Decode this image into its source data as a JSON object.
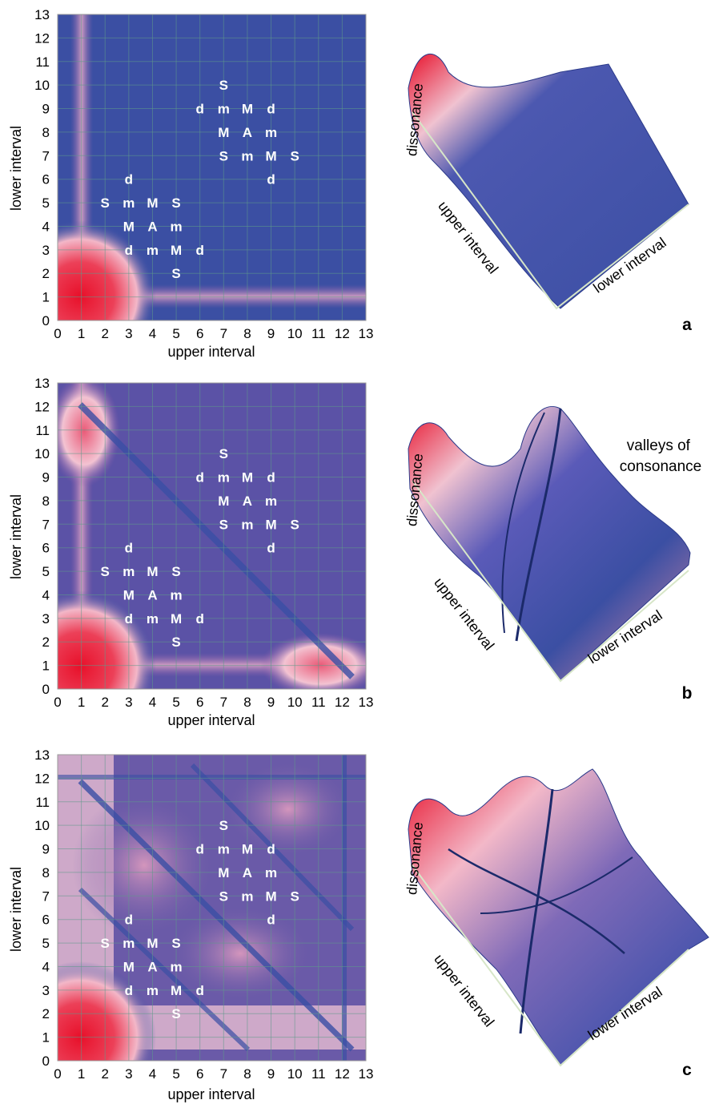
{
  "colors": {
    "consonant": "#3b4fa3",
    "dissonant": "#e8102a",
    "light": "#f2c6d3",
    "grid": "#5f9a8a"
  },
  "chord_labels": [
    {
      "x": 7,
      "y": 10,
      "text": "S"
    },
    {
      "x": 6,
      "y": 9,
      "text": "d"
    },
    {
      "x": 7,
      "y": 9,
      "text": "m"
    },
    {
      "x": 8,
      "y": 9,
      "text": "M"
    },
    {
      "x": 9,
      "y": 9,
      "text": "d"
    },
    {
      "x": 7,
      "y": 8,
      "text": "M"
    },
    {
      "x": 8,
      "y": 8,
      "text": "A"
    },
    {
      "x": 9,
      "y": 8,
      "text": "m"
    },
    {
      "x": 7,
      "y": 7,
      "text": "S"
    },
    {
      "x": 8,
      "y": 7,
      "text": "m"
    },
    {
      "x": 9,
      "y": 7,
      "text": "M"
    },
    {
      "x": 10,
      "y": 7,
      "text": "S"
    },
    {
      "x": 9,
      "y": 6,
      "text": "d"
    },
    {
      "x": 3,
      "y": 6,
      "text": "d"
    },
    {
      "x": 2,
      "y": 5,
      "text": "S"
    },
    {
      "x": 3,
      "y": 5,
      "text": "m"
    },
    {
      "x": 4,
      "y": 5,
      "text": "M"
    },
    {
      "x": 5,
      "y": 5,
      "text": "S"
    },
    {
      "x": 3,
      "y": 4,
      "text": "M"
    },
    {
      "x": 4,
      "y": 4,
      "text": "A"
    },
    {
      "x": 5,
      "y": 4,
      "text": "m"
    },
    {
      "x": 3,
      "y": 3,
      "text": "d"
    },
    {
      "x": 4,
      "y": 3,
      "text": "m"
    },
    {
      "x": 5,
      "y": 3,
      "text": "M"
    },
    {
      "x": 6,
      "y": 3,
      "text": "d"
    },
    {
      "x": 5,
      "y": 2,
      "text": "S"
    }
  ],
  "chart_data": [
    {
      "type": "heatmap",
      "panel": "a",
      "xlabel": "upper interval",
      "ylabel": "lower interval",
      "xlim": [
        0,
        13
      ],
      "ylim": [
        0,
        13
      ],
      "ticks": [
        0,
        1,
        2,
        3,
        4,
        5,
        6,
        7,
        8,
        9,
        10,
        11,
        12,
        13
      ],
      "grid": true,
      "dissonance_peaks": [
        {
          "x": 1,
          "y": 1,
          "level": "high"
        },
        {
          "x": 1,
          "y": 13,
          "level": "low"
        },
        {
          "x": 13,
          "y": 1,
          "level": "low"
        }
      ],
      "surface_3d": {
        "zlabel": "dissonance",
        "xlabel": "upper interval",
        "ylabel": "lower interval"
      }
    },
    {
      "type": "heatmap",
      "panel": "b",
      "xlabel": "upper interval",
      "ylabel": "lower interval",
      "xlim": [
        0,
        13
      ],
      "ylim": [
        0,
        13
      ],
      "ticks": [
        0,
        1,
        2,
        3,
        4,
        5,
        6,
        7,
        8,
        9,
        10,
        11,
        12,
        13
      ],
      "grid": true,
      "dissonance_peaks": [
        {
          "x": 1,
          "y": 1,
          "level": "high"
        },
        {
          "x": 1,
          "y": 11,
          "level": "medium"
        },
        {
          "x": 11,
          "y": 1,
          "level": "medium"
        }
      ],
      "consonance_valleys": [
        "x + y = 12"
      ],
      "surface_3d": {
        "zlabel": "dissonance",
        "xlabel": "upper interval",
        "ylabel": "lower interval",
        "annotation": "valleys of consonance"
      }
    },
    {
      "type": "heatmap",
      "panel": "c",
      "xlabel": "upper interval",
      "ylabel": "lower interval",
      "xlim": [
        0,
        13
      ],
      "ylim": [
        0,
        13
      ],
      "ticks": [
        0,
        1,
        2,
        3,
        4,
        5,
        6,
        7,
        8,
        9,
        10,
        11,
        12,
        13
      ],
      "grid": true,
      "dissonance_peaks": [
        {
          "x": 1,
          "y": 1,
          "level": "high"
        },
        {
          "x": 1,
          "y": 7,
          "level": "medium"
        },
        {
          "x": 7,
          "y": 1,
          "level": "medium"
        },
        {
          "x": 1,
          "y": 11,
          "level": "medium"
        },
        {
          "x": 11,
          "y": 1,
          "level": "medium"
        }
      ],
      "consonance_valleys": [
        "x + y = 12",
        "x + y = 7",
        "x = 12",
        "y = 12"
      ],
      "surface_3d": {
        "zlabel": "dissonance",
        "xlabel": "upper interval",
        "ylabel": "lower interval"
      }
    }
  ]
}
